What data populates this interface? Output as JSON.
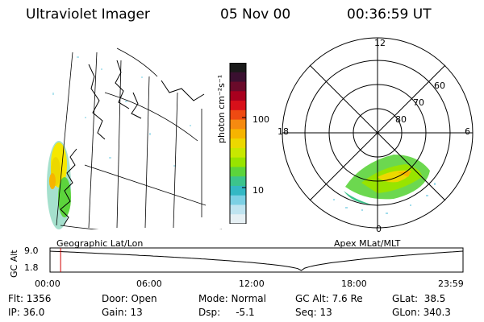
{
  "header": {
    "instrument": "Ultraviolet Imager",
    "date": "05 Nov 00",
    "time": "00:36:59  UT"
  },
  "geo_panel": {
    "label": "Geographic Lat/Lon"
  },
  "polar_panel": {
    "label": "Apex MLat/MLT",
    "mlt_labels": [
      "12",
      "18",
      "6",
      "0"
    ],
    "mlat_labels": [
      "60",
      "70",
      "80"
    ]
  },
  "colorbar": {
    "unit_label": "photon cm⁻²s⁻¹",
    "ticks": [
      "100",
      "10"
    ],
    "colors": [
      "#1a1a1a",
      "#3a1030",
      "#6a0a2a",
      "#a8001e",
      "#d8101a",
      "#ee4a12",
      "#f58a10",
      "#f6b400",
      "#ecd800",
      "#c8e800",
      "#98e400",
      "#5cd43c",
      "#3cc48c",
      "#34b8c4",
      "#7cd0e4",
      "#bfe4f0",
      "#e6f0f4"
    ]
  },
  "timeline": {
    "axis_label": "GC Alt",
    "y_ticks": [
      "9.0",
      "1.8"
    ],
    "x_ticks": [
      "00:00",
      "06:00",
      "12:00",
      "18:00",
      "23:59"
    ],
    "marker_time_hours": 0.616
  },
  "info": {
    "col1": [
      "Flt: 1356",
      "IP: 36.0"
    ],
    "col2": [
      "Door: Open",
      "Gain: 13"
    ],
    "col3": [
      "Mode: Normal",
      "Dsp:     -5.1"
    ],
    "col4": [
      "GC Alt: 7.6 Re",
      "Seq: 13"
    ],
    "col5": [
      "GLat:  38.5",
      "GLon: 340.3"
    ]
  }
}
